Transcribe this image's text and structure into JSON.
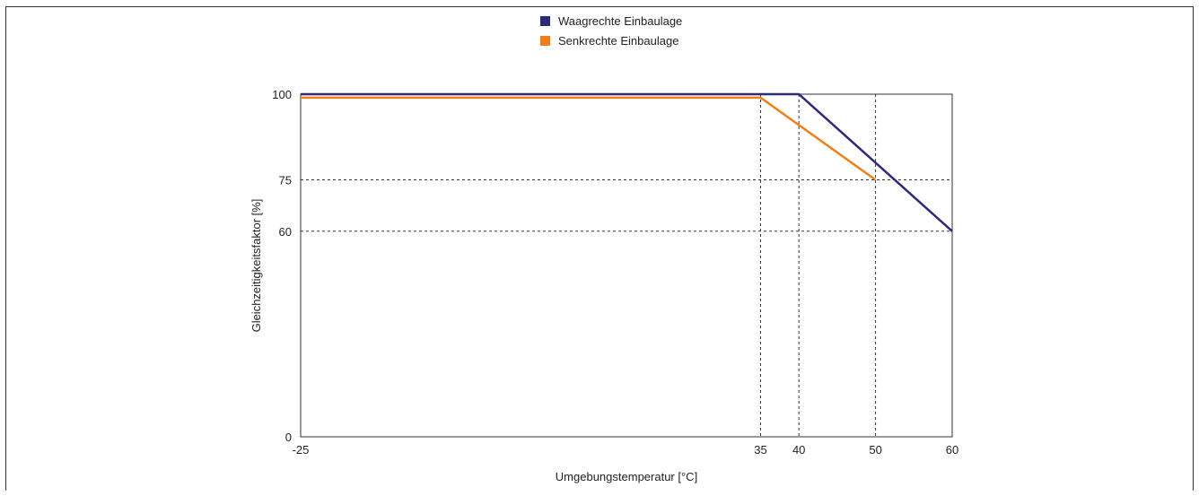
{
  "chart_data": {
    "type": "line",
    "xlabel": "Umgebungstemperatur [°C]",
    "ylabel": "Gleichzeitigkeitsfaktor [%]",
    "xlim": [
      -25,
      60
    ],
    "ylim": [
      0,
      100
    ],
    "x_ticks": [
      -25,
      35,
      40,
      50,
      60
    ],
    "y_ticks": [
      0,
      60,
      75,
      100
    ],
    "grid": "dashed reference lines at x = 35, 40, 50 and y = 60, 75",
    "legend_position": "top-center",
    "series": [
      {
        "name": "Waagrechte Einbaulage",
        "color": "#2E2A7A",
        "points": [
          [
            -25,
            100
          ],
          [
            40,
            100
          ],
          [
            60,
            60
          ]
        ]
      },
      {
        "name": "Senkrechte Einbaulage",
        "color": "#EE7F1A",
        "points": [
          [
            -25,
            99
          ],
          [
            35,
            99
          ],
          [
            50,
            75
          ]
        ]
      }
    ]
  }
}
